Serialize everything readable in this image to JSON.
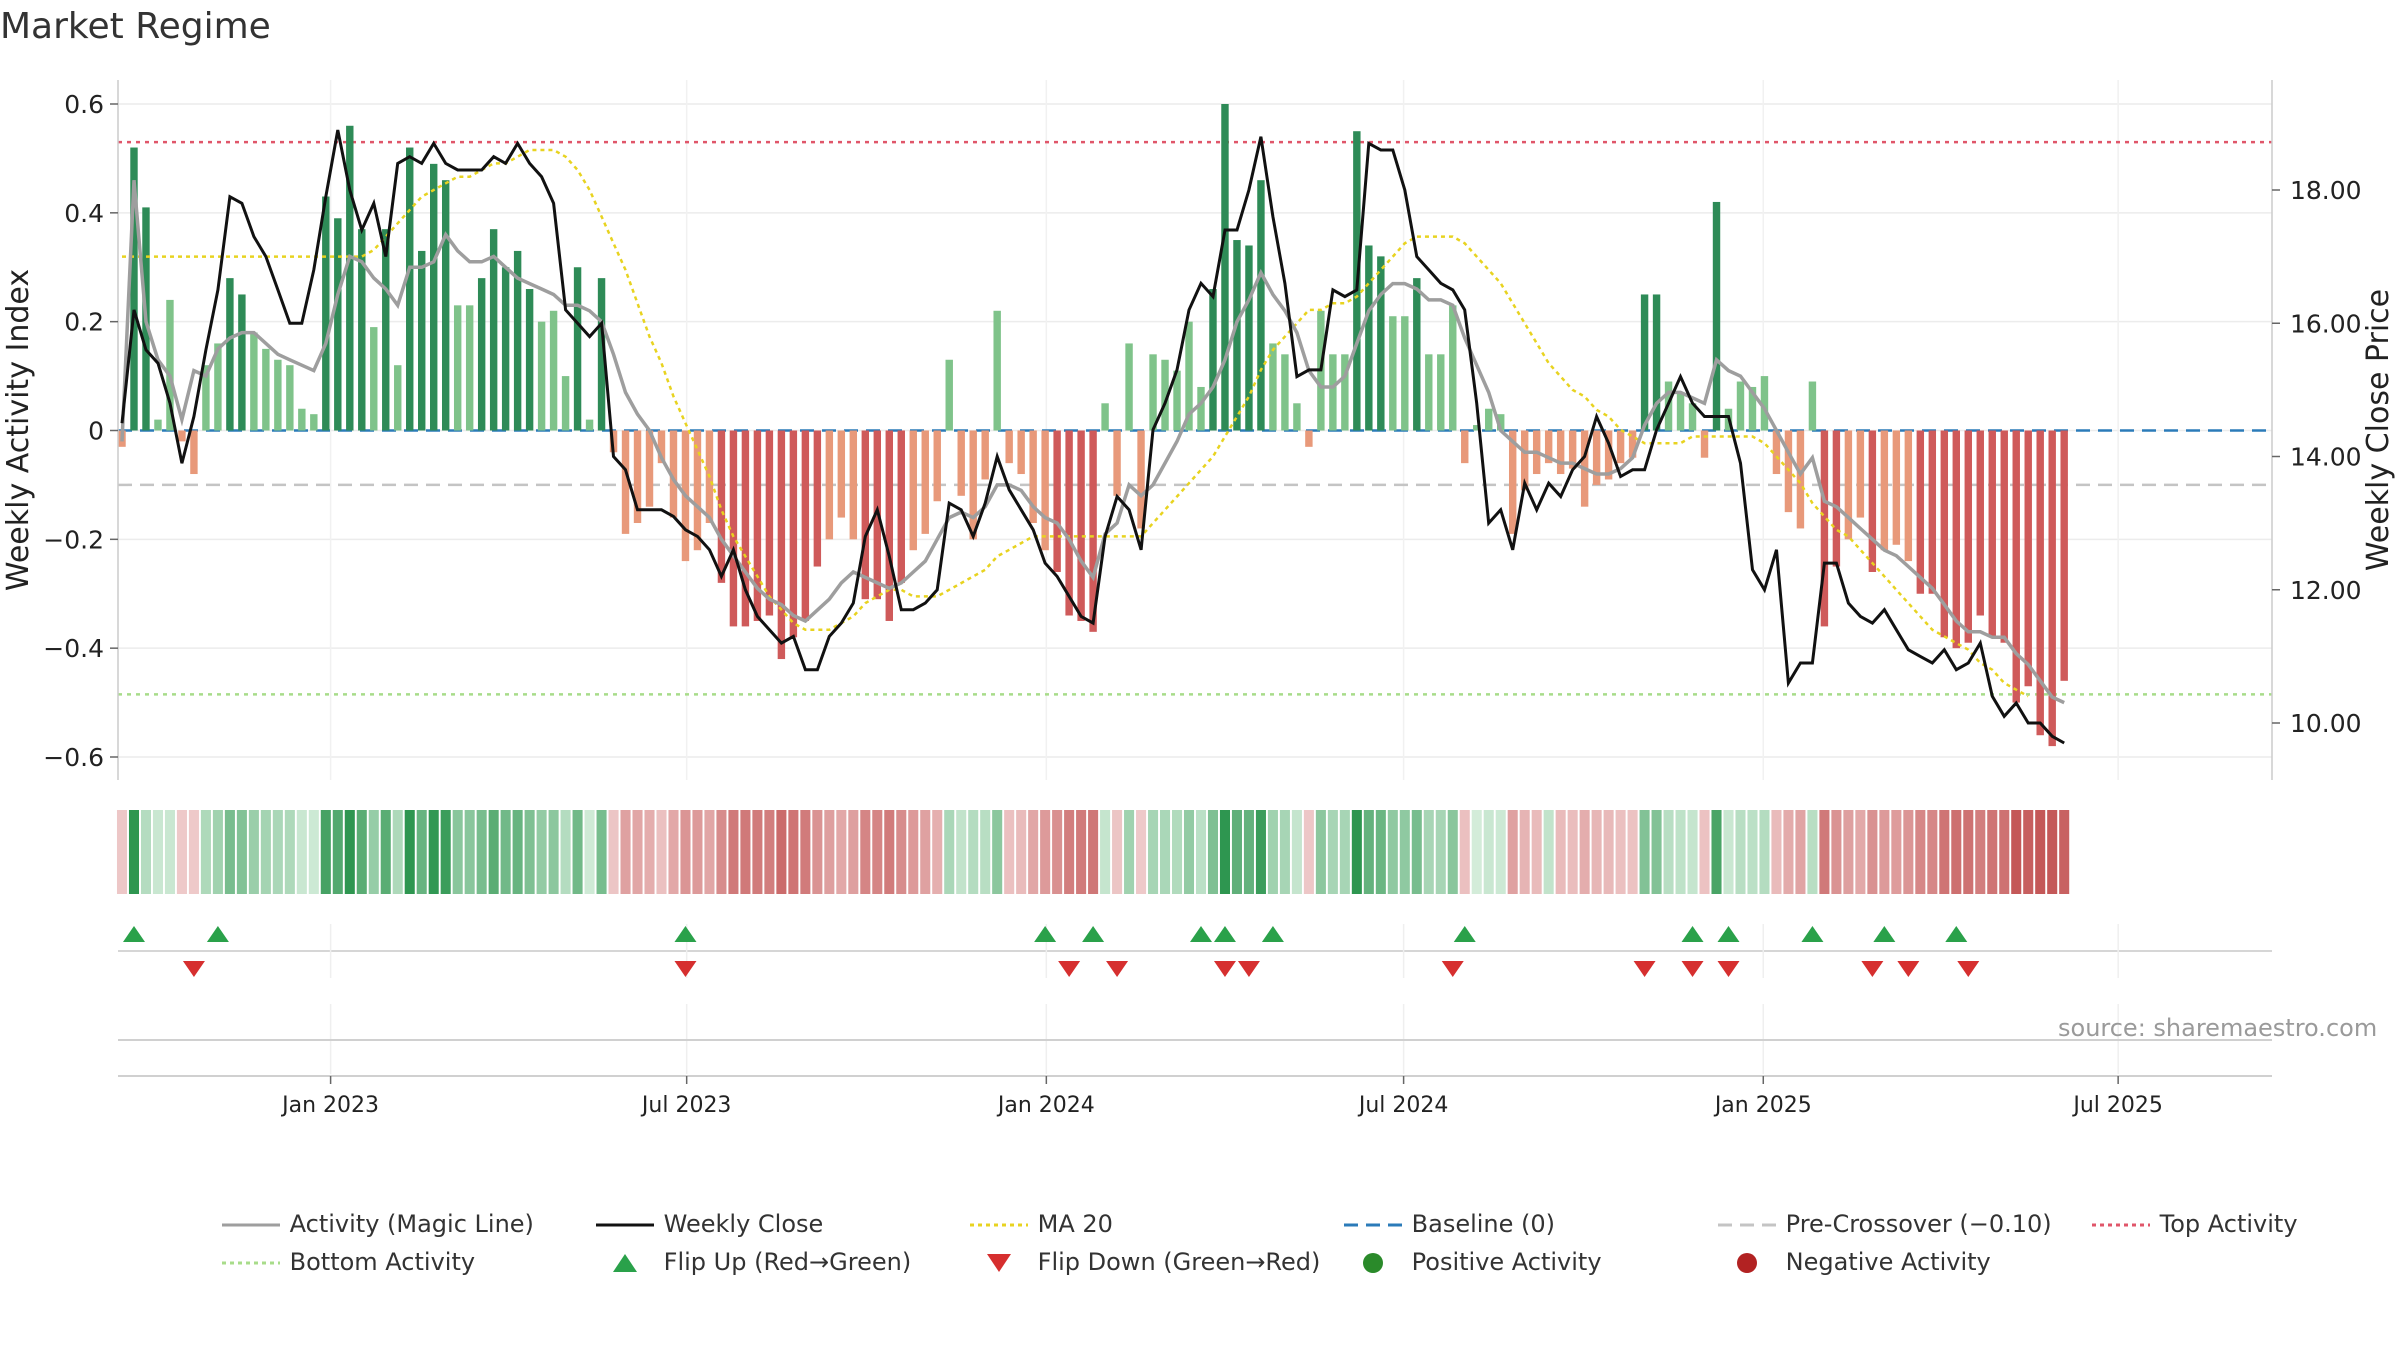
{
  "title": "Market Regime",
  "source": "source: sharemaestro.com",
  "chart_data": {
    "type": "line",
    "ylabel": "Weekly Activity Index",
    "ylabel_right": "Weekly Close Price",
    "y_ticks": [
      0.6,
      0.4,
      0.2,
      0,
      -0.2,
      -0.4,
      -0.6
    ],
    "y_tick_labels": [
      "0.6",
      "0.4",
      "0.2",
      "0",
      "−0.2",
      "−0.4",
      "−0.6"
    ],
    "ylim": [
      -0.64,
      0.64
    ],
    "y2_ticks": [
      18,
      16,
      14,
      12,
      10
    ],
    "y2_tick_labels": [
      "18.00",
      "16.00",
      "14.00",
      "12.00",
      "10.00"
    ],
    "y2lim": [
      9.4,
      19.2
    ],
    "x_tick_labels": [
      "Jan 2023",
      "Jul 2023",
      "Jan 2024",
      "Jul 2024",
      "Jan 2025",
      "Jul 2025"
    ],
    "x_tick_weeks": [
      17.4,
      47.1,
      77.1,
      106.9,
      136.9,
      166.5
    ],
    "n_weeks": 180,
    "ref_lines": {
      "top_activity": 0.53,
      "bottom_activity": -0.485,
      "pre_crossover": -0.1,
      "baseline": 0
    },
    "activity_bars": [
      -0.03,
      0.52,
      0.41,
      0.02,
      0.24,
      -0.02,
      -0.08,
      0.12,
      0.16,
      0.28,
      0.25,
      0.18,
      0.15,
      0.13,
      0.12,
      0.04,
      0.03,
      0.43,
      0.39,
      0.56,
      0.37,
      0.19,
      0.37,
      0.12,
      0.52,
      0.33,
      0.49,
      0.46,
      0.23,
      0.23,
      0.28,
      0.37,
      0.3,
      0.33,
      0.26,
      0.2,
      0.22,
      0.1,
      0.3,
      0.02,
      0.28,
      -0.04,
      -0.19,
      -0.17,
      -0.14,
      -0.06,
      -0.16,
      -0.24,
      -0.22,
      -0.17,
      -0.28,
      -0.36,
      -0.36,
      -0.35,
      -0.34,
      -0.42,
      -0.38,
      -0.35,
      -0.25,
      -0.2,
      -0.16,
      -0.2,
      -0.31,
      -0.31,
      -0.35,
      -0.28,
      -0.22,
      -0.19,
      -0.13,
      0.13,
      -0.12,
      -0.2,
      -0.09,
      0.22,
      -0.06,
      -0.08,
      -0.17,
      -0.22,
      -0.26,
      -0.34,
      -0.35,
      -0.37,
      0.05,
      -0.12,
      0.16,
      -0.18,
      0.14,
      0.13,
      0.11,
      0.2,
      0.08,
      0.26,
      0.6,
      0.35,
      0.34,
      0.46,
      0.16,
      0.14,
      0.05,
      -0.03,
      0.22,
      0.14,
      0.14,
      0.55,
      0.34,
      0.32,
      0.21,
      0.21,
      0.28,
      0.14,
      0.14,
      0.23,
      -0.06,
      0.01,
      0.04,
      0.03,
      -0.19,
      -0.11,
      -0.08,
      -0.06,
      -0.08,
      -0.07,
      -0.14,
      -0.1,
      -0.09,
      -0.06,
      -0.05,
      0.25,
      0.25,
      0.09,
      0.07,
      0.05,
      -0.05,
      0.42,
      0.04,
      0.09,
      0.08,
      0.1,
      -0.08,
      -0.15,
      -0.18,
      0.09,
      -0.36,
      -0.25,
      -0.2,
      -0.16,
      -0.26,
      -0.22,
      -0.21,
      -0.24,
      -0.3,
      -0.3,
      -0.38,
      -0.4,
      -0.39,
      -0.34,
      -0.38,
      -0.39,
      -0.5,
      -0.47,
      -0.56,
      -0.58,
      -0.46
    ],
    "series": [
      {
        "name": "Activity (Magic Line)",
        "values": [
          -0.02,
          0.46,
          0.2,
          0.13,
          0.1,
          0.02,
          0.11,
          0.1,
          0.15,
          0.17,
          0.18,
          0.18,
          0.16,
          0.14,
          0.13,
          0.12,
          0.11,
          0.16,
          0.25,
          0.32,
          0.31,
          0.28,
          0.26,
          0.23,
          0.3,
          0.3,
          0.31,
          0.36,
          0.33,
          0.31,
          0.31,
          0.32,
          0.3,
          0.28,
          0.27,
          0.26,
          0.25,
          0.23,
          0.23,
          0.22,
          0.2,
          0.14,
          0.07,
          0.03,
          0.0,
          -0.05,
          -0.09,
          -0.12,
          -0.14,
          -0.16,
          -0.2,
          -0.23,
          -0.26,
          -0.29,
          -0.31,
          -0.32,
          -0.34,
          -0.35,
          -0.33,
          -0.31,
          -0.28,
          -0.26,
          -0.27,
          -0.28,
          -0.29,
          -0.28,
          -0.26,
          -0.24,
          -0.2,
          -0.16,
          -0.15,
          -0.16,
          -0.14,
          -0.1,
          -0.1,
          -0.11,
          -0.14,
          -0.16,
          -0.17,
          -0.2,
          -0.24,
          -0.27,
          -0.19,
          -0.17,
          -0.1,
          -0.12,
          -0.1,
          -0.06,
          -0.02,
          0.03,
          0.05,
          0.08,
          0.13,
          0.2,
          0.24,
          0.29,
          0.25,
          0.22,
          0.18,
          0.11,
          0.08,
          0.08,
          0.1,
          0.16,
          0.22,
          0.25,
          0.27,
          0.27,
          0.26,
          0.24,
          0.24,
          0.23,
          0.17,
          0.12,
          0.07,
          0.0,
          -0.02,
          -0.04,
          -0.04,
          -0.05,
          -0.06,
          -0.06,
          -0.07,
          -0.08,
          -0.08,
          -0.07,
          -0.05,
          0.01,
          0.05,
          0.07,
          0.07,
          0.06,
          0.05,
          0.13,
          0.11,
          0.1,
          0.07,
          0.04,
          0.0,
          -0.04,
          -0.08,
          -0.05,
          -0.13,
          -0.14,
          -0.16,
          -0.18,
          -0.2,
          -0.22,
          -0.23,
          -0.25,
          -0.27,
          -0.29,
          -0.32,
          -0.35,
          -0.37,
          -0.37,
          -0.38,
          -0.38,
          -0.41,
          -0.43,
          -0.46,
          -0.49,
          -0.5
        ]
      },
      {
        "name": "Weekly Close",
        "axis": "right",
        "values": [
          14.5,
          16.2,
          15.6,
          15.4,
          14.8,
          13.9,
          14.6,
          15.6,
          16.5,
          17.9,
          17.8,
          17.3,
          17.0,
          16.5,
          16.0,
          16.0,
          16.8,
          17.9,
          18.9,
          18.0,
          17.4,
          17.8,
          17.0,
          18.4,
          18.5,
          18.4,
          18.7,
          18.4,
          18.3,
          18.3,
          18.3,
          18.5,
          18.4,
          18.7,
          18.4,
          18.2,
          17.8,
          16.2,
          16.0,
          15.8,
          16.0,
          14.0,
          13.8,
          13.2,
          13.2,
          13.2,
          13.1,
          12.9,
          12.8,
          12.6,
          12.2,
          12.6,
          12.0,
          11.6,
          11.4,
          11.2,
          11.3,
          10.8,
          10.8,
          11.3,
          11.5,
          11.8,
          12.8,
          13.2,
          12.5,
          11.7,
          11.7,
          11.8,
          12.0,
          13.3,
          13.2,
          12.8,
          13.3,
          14.0,
          13.5,
          13.2,
          12.9,
          12.4,
          12.2,
          11.9,
          11.6,
          11.5,
          12.8,
          13.4,
          13.2,
          12.6,
          14.4,
          14.8,
          15.3,
          16.2,
          16.6,
          16.4,
          17.4,
          17.4,
          18.0,
          18.8,
          17.6,
          16.6,
          15.2,
          15.3,
          15.3,
          16.5,
          16.4,
          16.5,
          18.7,
          18.6,
          18.6,
          18.0,
          17.0,
          16.8,
          16.6,
          16.5,
          16.2,
          14.8,
          13.0,
          13.2,
          12.6,
          13.6,
          13.2,
          13.6,
          13.4,
          13.8,
          14.0,
          14.6,
          14.2,
          13.7,
          13.8,
          13.8,
          14.4,
          14.8,
          15.2,
          14.8,
          14.6,
          14.6,
          14.6,
          13.9,
          12.3,
          12.0,
          12.6,
          10.6,
          10.9,
          10.9,
          12.4,
          12.4,
          11.8,
          11.6,
          11.5,
          11.7,
          11.4,
          11.1,
          11.0,
          10.9,
          11.1,
          10.8,
          10.9,
          11.2,
          10.4,
          10.1,
          10.3,
          10.0,
          10.0,
          9.8,
          9.7
        ]
      },
      {
        "name": "MA 20",
        "axis": "right",
        "values": [
          17.0,
          17.0,
          17.0,
          17.0,
          17.0,
          17.0,
          17.0,
          17.0,
          17.0,
          17.0,
          17.0,
          17.0,
          17.0,
          17.0,
          17.0,
          17.0,
          17.0,
          17.0,
          17.0,
          17.0,
          17.0,
          17.1,
          17.3,
          17.5,
          17.7,
          17.9,
          18.0,
          18.1,
          18.2,
          18.2,
          18.3,
          18.4,
          18.4,
          18.5,
          18.6,
          18.6,
          18.6,
          18.5,
          18.3,
          18.0,
          17.6,
          17.2,
          16.8,
          16.3,
          15.8,
          15.4,
          14.9,
          14.5,
          14.1,
          13.7,
          13.2,
          12.8,
          12.5,
          12.2,
          11.9,
          11.7,
          11.5,
          11.4,
          11.4,
          11.4,
          11.5,
          11.6,
          11.8,
          11.9,
          12.0,
          12.0,
          11.9,
          11.9,
          11.9,
          12.0,
          12.1,
          12.2,
          12.3,
          12.5,
          12.6,
          12.7,
          12.8,
          12.8,
          12.8,
          12.8,
          12.8,
          12.8,
          12.8,
          12.8,
          12.8,
          12.8,
          13.0,
          13.2,
          13.4,
          13.6,
          13.8,
          14.0,
          14.3,
          14.6,
          14.9,
          15.3,
          15.6,
          15.8,
          16.0,
          16.2,
          16.2,
          16.3,
          16.3,
          16.4,
          16.6,
          16.8,
          17.0,
          17.2,
          17.3,
          17.3,
          17.3,
          17.3,
          17.2,
          17.0,
          16.8,
          16.6,
          16.3,
          16.0,
          15.7,
          15.4,
          15.2,
          15.0,
          14.9,
          14.7,
          14.6,
          14.4,
          14.3,
          14.2,
          14.2,
          14.2,
          14.2,
          14.3,
          14.3,
          14.3,
          14.3,
          14.3,
          14.3,
          14.2,
          14.0,
          13.8,
          13.6,
          13.3,
          13.1,
          12.9,
          12.8,
          12.6,
          12.4,
          12.2,
          12.0,
          11.8,
          11.6,
          11.4,
          11.3,
          11.2,
          11.1,
          10.9,
          10.8,
          10.6,
          10.5,
          10.4
        ]
      }
    ],
    "band_bars": [
      -0.03,
      0.52,
      0.1,
      0.04,
      0.04,
      -0.02,
      -0.02,
      0.12,
      0.16,
      0.28,
      0.25,
      0.18,
      0.15,
      0.13,
      0.12,
      0.04,
      0.03,
      0.43,
      0.39,
      0.56,
      0.37,
      0.19,
      0.37,
      0.12,
      0.52,
      0.33,
      0.49,
      0.46,
      0.23,
      0.23,
      0.28,
      0.37,
      0.3,
      0.33,
      0.26,
      0.2,
      0.22,
      0.1,
      0.3,
      0.02,
      0.28,
      -0.04,
      -0.19,
      -0.17,
      -0.14,
      -0.06,
      -0.16,
      -0.24,
      -0.22,
      -0.17,
      -0.28,
      -0.36,
      -0.36,
      -0.35,
      -0.34,
      -0.42,
      -0.38,
      -0.35,
      -0.25,
      -0.2,
      -0.16,
      -0.2,
      -0.31,
      -0.31,
      -0.35,
      -0.28,
      -0.22,
      -0.19,
      -0.13,
      0.13,
      0.06,
      0.1,
      0.09,
      0.22,
      -0.06,
      -0.08,
      -0.17,
      -0.22,
      -0.26,
      -0.34,
      -0.35,
      -0.37,
      0.05,
      -0.04,
      0.16,
      -0.02,
      0.14,
      0.13,
      0.11,
      0.2,
      0.08,
      0.26,
      0.6,
      0.35,
      0.34,
      0.46,
      0.16,
      0.14,
      0.05,
      -0.03,
      0.22,
      0.14,
      0.14,
      0.55,
      0.34,
      0.32,
      0.21,
      0.21,
      0.28,
      0.14,
      0.14,
      0.23,
      -0.06,
      0.01,
      0.04,
      0.03,
      -0.19,
      -0.11,
      -0.08,
      0.06,
      -0.08,
      -0.07,
      -0.14,
      -0.1,
      -0.09,
      -0.06,
      -0.05,
      0.25,
      0.25,
      0.09,
      0.07,
      0.05,
      -0.05,
      0.42,
      0.04,
      0.09,
      0.08,
      0.1,
      -0.08,
      -0.15,
      -0.18,
      0.09,
      -0.36,
      -0.25,
      -0.2,
      -0.16,
      -0.26,
      -0.22,
      -0.21,
      -0.24,
      -0.3,
      -0.3,
      -0.38,
      -0.4,
      -0.39,
      -0.34,
      -0.38,
      -0.39,
      -0.5,
      -0.47,
      -0.56,
      -0.58,
      -0.46
    ],
    "flip_up_weeks": [
      1,
      8,
      47,
      77,
      81,
      90,
      92,
      96,
      112,
      131,
      134,
      141,
      147,
      153
    ],
    "flip_down_weeks": [
      6,
      47,
      79,
      83,
      92,
      94,
      111,
      127,
      131,
      134,
      146,
      149,
      154
    ],
    "legend": [
      "Activity (Magic Line)",
      "Weekly Close",
      "MA 20",
      "Baseline (0)",
      "Pre-Crossover (−0.10)",
      "Top Activity",
      "Bottom Activity",
      "Flip Up (Red→Green)",
      "Flip Down (Green→Red)",
      "Positive Activity",
      "Negative Activity"
    ]
  }
}
